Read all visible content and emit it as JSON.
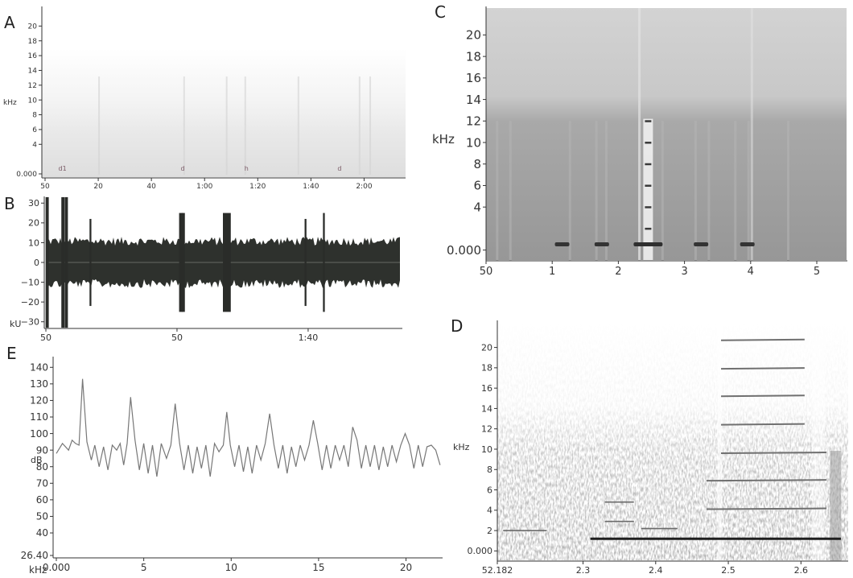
{
  "chart_data": [
    {
      "id": "A",
      "type": "heatmap",
      "panel_label": "A",
      "ylabel": "kHz",
      "y_ticks": [
        "0.000",
        "4",
        "6",
        "8",
        "10",
        "12",
        "14",
        "16",
        "18",
        "20"
      ],
      "y_tick_values": [
        0,
        4,
        6,
        8,
        10,
        12,
        14,
        16,
        18,
        20
      ],
      "ylim": [
        0,
        22
      ],
      "x_ticks": [
        "50",
        "20",
        "40",
        "1:00",
        "1:20",
        "1:40",
        "2:00"
      ],
      "x_tick_seconds": [
        0,
        20,
        40,
        60,
        80,
        100,
        120
      ],
      "xlim": [
        0,
        135
      ],
      "annotations": [
        "d1",
        "d",
        "h",
        "d"
      ]
    },
    {
      "id": "B",
      "type": "area",
      "panel_label": "B",
      "ylabel": "kU",
      "y_ticks": [
        "30",
        "20",
        "10",
        "0",
        "−10",
        "−20",
        "−30"
      ],
      "y_tick_values": [
        30,
        20,
        10,
        0,
        -10,
        -20,
        -30
      ],
      "ylim": [
        -35,
        35
      ],
      "x_ticks": [
        "50",
        "50",
        "1:40"
      ],
      "x_tick_seconds": [
        0,
        50,
        100
      ],
      "xlim": [
        0,
        135
      ],
      "envelope": {
        "baseline": 10
      },
      "spikes": [
        {
          "t": 0.5,
          "v": 33,
          "w": 1.2
        },
        {
          "t": 6.5,
          "v": 33,
          "w": 1.2
        },
        {
          "t": 7.8,
          "v": 33,
          "w": 1.2
        },
        {
          "t": 17,
          "v": 22,
          "w": 0.7
        },
        {
          "t": 51.5,
          "v": 25,
          "w": 1.4
        },
        {
          "t": 52.4,
          "v": 25,
          "w": 1.2
        },
        {
          "t": 69,
          "v": 25,
          "w": 3.0
        },
        {
          "t": 99,
          "v": 22,
          "w": 0.7
        },
        {
          "t": 106,
          "v": 25,
          "w": 0.7
        }
      ]
    },
    {
      "id": "C",
      "type": "heatmap",
      "panel_label": "C",
      "ylabel": "kHz",
      "y_ticks": [
        "0.000",
        "4",
        "6",
        "8",
        "10",
        "12",
        "14",
        "16",
        "18",
        "20"
      ],
      "y_tick_values": [
        0,
        4,
        6,
        8,
        10,
        12,
        14,
        16,
        18,
        20
      ],
      "ylim": [
        -1,
        22.5
      ],
      "x_ticks": [
        "50",
        "1",
        "2",
        "3",
        "4",
        "5"
      ],
      "x_tick_values": [
        0,
        1,
        2,
        3,
        4,
        5
      ],
      "xlim": [
        0,
        5.45
      ],
      "calls": [
        {
          "t": 1.15,
          "type": "dot"
        },
        {
          "t": 1.75,
          "type": "dot"
        },
        {
          "t": 2.45,
          "type": "harmonic",
          "f0": 2,
          "top": 12
        },
        {
          "t": 3.25,
          "type": "dot"
        },
        {
          "t": 3.95,
          "type": "dot"
        }
      ]
    },
    {
      "id": "D",
      "type": "heatmap",
      "panel_label": "D",
      "ylabel": "kHz",
      "y_ticks": [
        "0.000",
        "2",
        "4",
        "6",
        "8",
        "10",
        "12",
        "14",
        "16",
        "18",
        "20"
      ],
      "y_tick_values": [
        0,
        2,
        4,
        6,
        8,
        10,
        12,
        14,
        16,
        18,
        20
      ],
      "ylim": [
        -1,
        22.5
      ],
      "x_ticks": [
        "52.182",
        "2.3",
        "2.4",
        "2.5",
        "2.6"
      ],
      "x_tick_values": [
        2.182,
        2.3,
        2.4,
        2.5,
        2.6
      ],
      "xlim": [
        2.182,
        2.665
      ],
      "harmonics_kHz": [
        1.2,
        4.1,
        6.9,
        9.6,
        12.4,
        15.2,
        17.9,
        20.7
      ],
      "harmonic_span": [
        2.49,
        2.605
      ]
    },
    {
      "id": "E",
      "type": "line",
      "panel_label": "E",
      "xlabel": "kHz",
      "ylabel": "dB",
      "x_ticks": [
        "0.000",
        "5",
        "10",
        "15",
        "20"
      ],
      "x_tick_values": [
        0,
        5,
        10,
        15,
        20
      ],
      "xlim": [
        0,
        22
      ],
      "y_ticks": [
        "26.40",
        "40",
        "50",
        "60",
        "70",
        "80",
        "90",
        "100",
        "110",
        "120",
        "130",
        "140"
      ],
      "y_tick_values": [
        26.4,
        40,
        50,
        60,
        70,
        80,
        90,
        100,
        110,
        120,
        130,
        140
      ],
      "ylim": [
        26.4,
        145
      ],
      "series": [
        {
          "x": [
            0,
            0.35,
            0.7,
            0.9,
            1.1,
            1.3,
            1.5,
            1.75,
            2.0,
            2.2,
            2.45,
            2.7,
            2.95,
            3.2,
            3.45,
            3.65,
            3.85,
            4.05,
            4.25,
            4.5,
            4.75,
            5.0,
            5.25,
            5.5,
            5.75,
            6.0,
            6.3,
            6.55,
            6.8,
            7.05,
            7.3,
            7.55,
            7.8,
            8.05,
            8.3,
            8.55,
            8.8,
            9.05,
            9.3,
            9.55,
            9.75,
            9.95,
            10.2,
            10.45,
            10.7,
            10.95,
            11.2,
            11.45,
            11.7,
            11.95,
            12.2,
            12.45,
            12.7,
            12.95,
            13.2,
            13.45,
            13.7,
            13.95,
            14.2,
            14.45,
            14.7,
            14.95,
            15.2,
            15.45,
            15.7,
            15.95,
            16.2,
            16.45,
            16.7,
            16.95,
            17.2,
            17.45,
            17.7,
            17.95,
            18.2,
            18.45,
            18.7,
            18.95,
            19.2,
            19.45,
            19.7,
            19.95,
            20.2,
            20.45,
            20.7,
            20.95,
            21.2,
            21.45,
            21.7,
            21.95
          ],
          "y": [
            88,
            94,
            90,
            96,
            94,
            93,
            133,
            95,
            84,
            93,
            80,
            92,
            78,
            93,
            90,
            94,
            81,
            94,
            122,
            96,
            78,
            94,
            76,
            93,
            74,
            94,
            85,
            93,
            118,
            94,
            78,
            93,
            76,
            92,
            79,
            93,
            74,
            94,
            89,
            93,
            113,
            93,
            80,
            93,
            77,
            92,
            76,
            93,
            84,
            94,
            112,
            93,
            79,
            93,
            76,
            92,
            80,
            93,
            84,
            93,
            108,
            94,
            78,
            93,
            79,
            93,
            84,
            93,
            80,
            104,
            96,
            79,
            93,
            80,
            93,
            78,
            92,
            80,
            93,
            83,
            93,
            100,
            93,
            79,
            93,
            80,
            92,
            93,
            90,
            81
          ]
        }
      ]
    }
  ]
}
